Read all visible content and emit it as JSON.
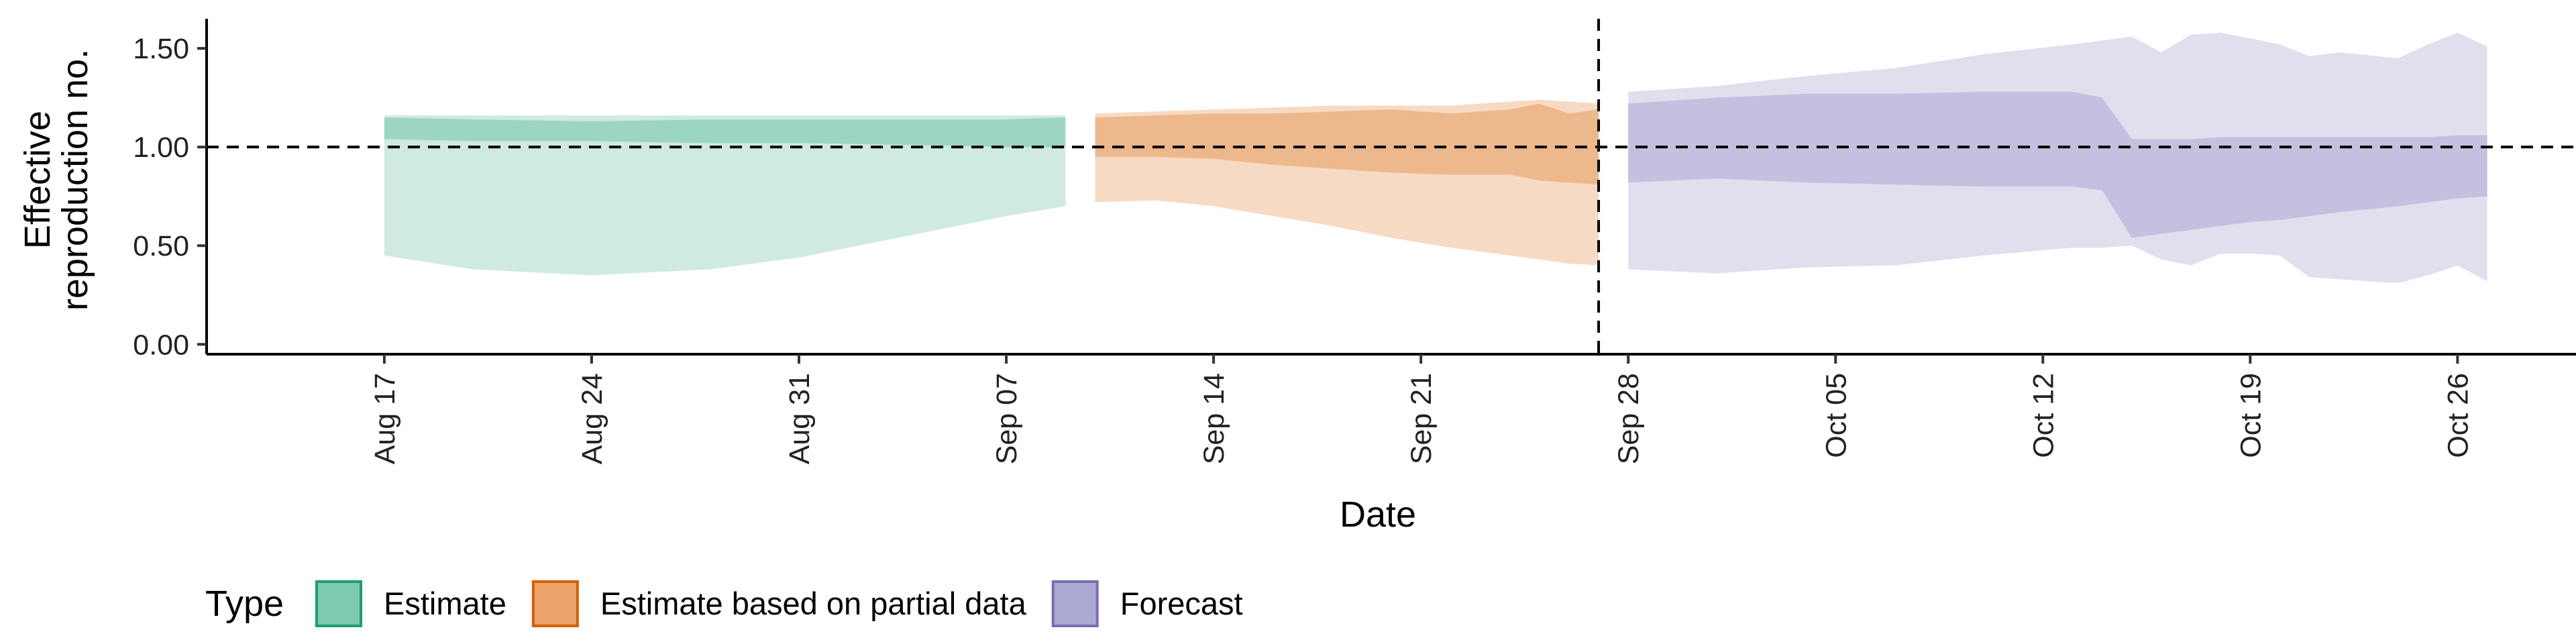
{
  "chart_data": {
    "type": "area",
    "xlabel": "Date",
    "ylabel_lines": [
      "Effective",
      "reproduction no."
    ],
    "ylim": [
      -0.05,
      1.65
    ],
    "xlim": [
      "2020-08-11",
      "2020-10-30"
    ],
    "y_ticks": [
      0.0,
      0.5,
      1.0,
      1.5
    ],
    "y_tick_labels": [
      "0.00",
      "0.50",
      "1.00",
      "1.50"
    ],
    "x_ticks": [
      "2020-08-17",
      "2020-08-24",
      "2020-08-31",
      "2020-09-07",
      "2020-09-14",
      "2020-09-21",
      "2020-09-28",
      "2020-10-05",
      "2020-10-12",
      "2020-10-19",
      "2020-10-26"
    ],
    "x_tick_labels": [
      "Aug 17",
      "Aug 24",
      "Aug 31",
      "Sep 07",
      "Sep 14",
      "Sep 21",
      "Sep 28",
      "Oct 05",
      "Oct 12",
      "Oct 19",
      "Oct 26"
    ],
    "reference_line_y": 1.0,
    "forecast_date_line": "2020-09-27",
    "grid": false,
    "legend": {
      "title": "Type",
      "position": "bottom",
      "entries": [
        {
          "label": "Estimate",
          "fill": "#7fc9b0",
          "stroke": "#1b9e77"
        },
        {
          "label": "Estimate based on partial data",
          "fill": "#eba36b",
          "stroke": "#d95f02"
        },
        {
          "label": "Forecast",
          "fill": "#aba9d2",
          "stroke": "#7570b3"
        }
      ]
    },
    "series": [
      {
        "name": "Estimate",
        "outer_color": "#cfeadf",
        "inner_color": "#9cd6c1",
        "x": [
          "2020-08-17",
          "2020-08-20",
          "2020-08-24",
          "2020-08-28",
          "2020-08-31",
          "2020-09-04",
          "2020-09-07",
          "2020-09-09"
        ],
        "outer_lower": [
          0.45,
          0.38,
          0.35,
          0.38,
          0.44,
          0.56,
          0.65,
          0.7
        ],
        "outer_upper": [
          1.16,
          1.16,
          1.16,
          1.16,
          1.16,
          1.16,
          1.16,
          1.16
        ],
        "inner_lower": [
          1.04,
          1.03,
          1.03,
          1.02,
          1.02,
          1.01,
          1.0,
          1.0
        ],
        "inner_upper": [
          1.15,
          1.14,
          1.13,
          1.14,
          1.14,
          1.14,
          1.14,
          1.15
        ]
      },
      {
        "name": "Estimate based on partial data",
        "outer_color": "#f7dac4",
        "inner_color": "#edb88c",
        "x": [
          "2020-09-10",
          "2020-09-12",
          "2020-09-14",
          "2020-09-16",
          "2020-09-18",
          "2020-09-20",
          "2020-09-22",
          "2020-09-24",
          "2020-09-25",
          "2020-09-26",
          "2020-09-27"
        ],
        "outer_lower": [
          0.72,
          0.73,
          0.7,
          0.65,
          0.6,
          0.54,
          0.49,
          0.45,
          0.43,
          0.41,
          0.4
        ],
        "outer_upper": [
          1.17,
          1.18,
          1.19,
          1.2,
          1.21,
          1.21,
          1.21,
          1.23,
          1.24,
          1.23,
          1.22
        ],
        "inner_lower": [
          0.95,
          0.95,
          0.94,
          0.91,
          0.89,
          0.87,
          0.86,
          0.86,
          0.83,
          0.82,
          0.81
        ],
        "inner_upper": [
          1.15,
          1.16,
          1.17,
          1.17,
          1.18,
          1.19,
          1.17,
          1.19,
          1.22,
          1.17,
          1.19
        ]
      },
      {
        "name": "Forecast",
        "outer_color": "#e0dfee",
        "inner_color": "#c3c0e0",
        "x": [
          "2020-09-28",
          "2020-10-01",
          "2020-10-04",
          "2020-10-07",
          "2020-10-10",
          "2020-10-13",
          "2020-10-14",
          "2020-10-15",
          "2020-10-16",
          "2020-10-17",
          "2020-10-18",
          "2020-10-19",
          "2020-10-20",
          "2020-10-21",
          "2020-10-22",
          "2020-10-24",
          "2020-10-25",
          "2020-10-26",
          "2020-10-27"
        ],
        "outer_lower": [
          0.38,
          0.36,
          0.39,
          0.4,
          0.45,
          0.49,
          0.49,
          0.5,
          0.43,
          0.4,
          0.46,
          0.46,
          0.45,
          0.34,
          0.33,
          0.31,
          0.35,
          0.4,
          0.32
        ],
        "outer_upper": [
          1.28,
          1.31,
          1.36,
          1.4,
          1.47,
          1.52,
          1.54,
          1.56,
          1.48,
          1.57,
          1.58,
          1.55,
          1.52,
          1.46,
          1.48,
          1.45,
          1.52,
          1.58,
          1.51
        ],
        "inner_lower": [
          0.82,
          0.84,
          0.82,
          0.81,
          0.8,
          0.8,
          0.78,
          0.54,
          0.56,
          0.58,
          0.6,
          0.62,
          0.63,
          0.65,
          0.67,
          0.7,
          0.72,
          0.74,
          0.75
        ],
        "inner_upper": [
          1.22,
          1.25,
          1.27,
          1.27,
          1.28,
          1.28,
          1.25,
          1.04,
          1.04,
          1.04,
          1.05,
          1.05,
          1.05,
          1.05,
          1.05,
          1.05,
          1.05,
          1.06,
          1.06
        ]
      }
    ]
  }
}
